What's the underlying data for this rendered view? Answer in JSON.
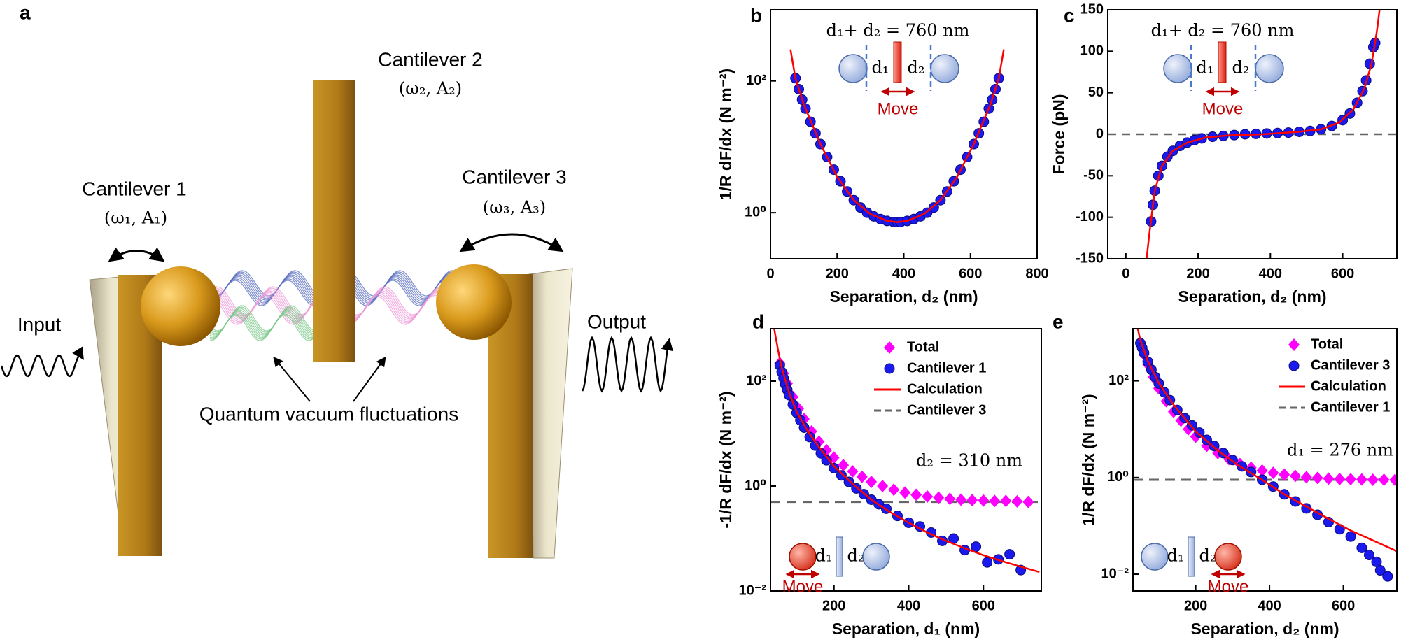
{
  "diagram": {
    "panel_label": "a",
    "cantilever_1": "Cantilever 1",
    "cantilever_1_params": "(ω₁, A₁)",
    "cantilever_2": "Cantilever 2",
    "cantilever_2_params": "(ω₂, A₂)",
    "cantilever_3": "Cantilever 3",
    "cantilever_3_params": "(ω₃, A₃)",
    "input": "Input",
    "output": "Output",
    "fluctuations": "Quantum vacuum fluctuations"
  },
  "chart_data": [
    {
      "type": "scatter",
      "panel_label": "b",
      "ylog": true,
      "xlim": [
        0,
        800
      ],
      "xticks": [
        0,
        200,
        400,
        600,
        800
      ],
      "ylim": [
        0.2,
        1200
      ],
      "yticks": [
        {
          "value": 1,
          "label": "10⁰"
        },
        {
          "value": 100,
          "label": "10²"
        }
      ],
      "xlabel": "Separation, d₂ (nm)",
      "ylabel": "1/R dF/dx (N m⁻²)",
      "annotations": [
        "d₁+ d₂ = 760 nm",
        "d₁",
        "d₂",
        "Move"
      ],
      "series": [
        {
          "kind": "scatter",
          "marker": "circle",
          "color": "#1a1aee",
          "x": [
            75,
            85,
            95,
            105,
            120,
            135,
            150,
            170,
            190,
            210,
            230,
            250,
            270,
            290,
            310,
            330,
            350,
            370,
            380,
            390,
            410,
            430,
            450,
            470,
            490,
            510,
            530,
            550,
            570,
            590,
            610,
            625,
            640,
            655,
            665,
            675,
            685
          ],
          "values": [
            110,
            75,
            52,
            38,
            24,
            16,
            11,
            7,
            4.5,
            3.0,
            2.1,
            1.55,
            1.2,
            1.0,
            0.88,
            0.8,
            0.75,
            0.72,
            0.72,
            0.72,
            0.75,
            0.8,
            0.88,
            1.0,
            1.2,
            1.55,
            2.1,
            3.0,
            4.5,
            7,
            11,
            16,
            24,
            38,
            52,
            75,
            110
          ]
        },
        {
          "kind": "line",
          "color": "#ff0000",
          "x": [
            60,
            75,
            100,
            150,
            200,
            250,
            300,
            350,
            380,
            410,
            460,
            510,
            560,
            610,
            660,
            685,
            700
          ],
          "values": [
            300,
            110,
            44,
            11,
            3.5,
            1.55,
            0.95,
            0.75,
            0.72,
            0.75,
            0.95,
            1.55,
            3.5,
            11,
            44,
            110,
            300
          ]
        }
      ]
    },
    {
      "type": "scatter",
      "panel_label": "c",
      "ylog": false,
      "xlim": [
        -50,
        750
      ],
      "xticks": [
        0,
        200,
        400,
        600
      ],
      "ylim": [
        -150,
        150
      ],
      "yticks": [
        -150,
        -100,
        -50,
        0,
        50,
        100,
        150
      ],
      "hline": 0,
      "xlabel": "Separation, d₂ (nm)",
      "ylabel": "Force (pN)",
      "annotations": [
        "d₁+ d₂ = 760 nm",
        "d₁",
        "d₂",
        "Move"
      ],
      "series": [
        {
          "kind": "scatter",
          "marker": "circle",
          "color": "#1a1aee",
          "x": [
            70,
            75,
            80,
            90,
            100,
            115,
            130,
            150,
            170,
            190,
            210,
            240,
            270,
            300,
            330,
            360,
            390,
            420,
            450,
            480,
            510,
            540,
            570,
            600,
            620,
            640,
            655,
            665,
            675,
            685,
            690
          ],
          "values": [
            -105,
            -85,
            -68,
            -50,
            -38,
            -27,
            -20,
            -14,
            -10,
            -7,
            -5,
            -3,
            -2,
            -1,
            0,
            0.5,
            1,
            1.5,
            2,
            3,
            4,
            6,
            10,
            17,
            25,
            38,
            52,
            65,
            85,
            105,
            110
          ]
        },
        {
          "kind": "line",
          "color": "#ff0000",
          "x": [
            55,
            65,
            80,
            100,
            130,
            170,
            220,
            280,
            380,
            480,
            540,
            590,
            630,
            660,
            680,
            695,
            705
          ],
          "values": [
            -160,
            -120,
            -68,
            -38,
            -20,
            -10,
            -4,
            -1.5,
            0,
            3,
            6,
            14,
            30,
            55,
            85,
            125,
            160
          ]
        }
      ]
    },
    {
      "type": "scatter",
      "panel_label": "d",
      "ylog": true,
      "xlim": [
        30,
        755
      ],
      "xticks": [
        200,
        400,
        600
      ],
      "ylim": [
        0.01,
        1000
      ],
      "yticks": [
        {
          "value": 0.01,
          "label": "10⁻²"
        },
        {
          "value": 1,
          "label": "10⁰"
        },
        {
          "value": 100,
          "label": "10²"
        }
      ],
      "xlabel": "Separation, d₁ (nm)",
      "ylabel": "-1/R dF/dx (N m⁻²)",
      "legend": "upper right",
      "annotations": [
        "d₂ = 310 nm",
        "d₁",
        "d₂",
        "Move"
      ],
      "series": [
        {
          "name": "Total",
          "kind": "scatter",
          "marker": "diamond",
          "color": "#ff00ff",
          "x": [
            55,
            65,
            75,
            90,
            105,
            120,
            140,
            160,
            180,
            200,
            225,
            250,
            275,
            300,
            330,
            360,
            390,
            420,
            450,
            480,
            510,
            540,
            570,
            600,
            630,
            660,
            690,
            720
          ],
          "values": [
            220,
            140,
            90,
            50,
            30,
            19,
            11,
            7,
            4.8,
            3.5,
            2.5,
            1.9,
            1.5,
            1.2,
            1.0,
            0.85,
            0.75,
            0.68,
            0.63,
            0.6,
            0.57,
            0.55,
            0.54,
            0.53,
            0.52,
            0.52,
            0.51,
            0.5
          ]
        },
        {
          "name": "Cantilever 1",
          "kind": "scatter",
          "marker": "circle",
          "color": "#1a1aee",
          "x": [
            55,
            60,
            65,
            70,
            75,
            80,
            90,
            100,
            110,
            120,
            135,
            150,
            165,
            180,
            200,
            220,
            240,
            260,
            280,
            300,
            320,
            340,
            370,
            400,
            430,
            460,
            490,
            520,
            550,
            580,
            610,
            640,
            670,
            700
          ],
          "values": [
            200,
            150,
            114,
            86,
            68,
            54,
            36,
            25,
            18,
            13,
            8.6,
            5.9,
            4.2,
            3.1,
            2.2,
            1.6,
            1.2,
            0.9,
            0.7,
            0.55,
            0.45,
            0.37,
            0.27,
            0.2,
            0.17,
            0.13,
            0.09,
            0.1,
            0.06,
            0.07,
            0.035,
            0.04,
            0.05,
            0.025
          ]
        },
        {
          "name": "Calculation",
          "kind": "line",
          "color": "#ff0000",
          "x": [
            40,
            50,
            60,
            80,
            100,
            130,
            160,
            200,
            250,
            300,
            350,
            400,
            450,
            500,
            550,
            600,
            650,
            700,
            750
          ],
          "values": [
            1000,
            400,
            180,
            60,
            26,
            11,
            5.5,
            2.4,
            1.1,
            0.55,
            0.32,
            0.2,
            0.13,
            0.09,
            0.065,
            0.048,
            0.037,
            0.029,
            0.023
          ]
        },
        {
          "name": "Cantilever 3",
          "kind": "dashed",
          "color": "#666666",
          "x": [
            30,
            755
          ],
          "values": [
            0.5,
            0.5
          ]
        }
      ]
    },
    {
      "type": "scatter",
      "panel_label": "e",
      "ylog": true,
      "xlim": [
        30,
        745
      ],
      "xticks": [
        200,
        400,
        600
      ],
      "ylim": [
        0.0045,
        1200
      ],
      "yticks": [
        {
          "value": 0.01,
          "label": "10⁻²"
        },
        {
          "value": 1,
          "label": "10⁰"
        },
        {
          "value": 100,
          "label": "10²"
        }
      ],
      "xlabel": "Separation, d₂ (nm)",
      "ylabel": "1/R dF/dx (N m⁻²)",
      "legend": "upper right",
      "annotations": [
        "d₁ = 276 nm",
        "d₁",
        "d₂",
        "Move"
      ],
      "series": [
        {
          "name": "Total",
          "kind": "scatter",
          "marker": "diamond",
          "color": "#ff00ff",
          "x": [
            50,
            60,
            70,
            85,
            100,
            120,
            140,
            160,
            180,
            200,
            230,
            260,
            290,
            320,
            350,
            380,
            410,
            440,
            470,
            500,
            530,
            560,
            590,
            620,
            650,
            680,
            710,
            740
          ],
          "values": [
            600,
            350,
            220,
            120,
            70,
            38,
            23,
            15,
            10,
            7,
            4.5,
            3.2,
            2.4,
            1.9,
            1.6,
            1.4,
            1.25,
            1.15,
            1.08,
            1.02,
            0.98,
            0.95,
            0.93,
            0.92,
            0.91,
            0.9,
            0.9,
            0.89
          ]
        },
        {
          "name": "Cantilever 3",
          "kind": "scatter",
          "marker": "circle",
          "color": "#1a1aee",
          "x": [
            50,
            55,
            60,
            70,
            80,
            90,
            100,
            115,
            130,
            150,
            170,
            190,
            210,
            230,
            250,
            275,
            300,
            325,
            350,
            380,
            410,
            440,
            470,
            500,
            530,
            560,
            590,
            620,
            650,
            670,
            690,
            700,
            720
          ],
          "values": [
            600,
            480,
            380,
            250,
            170,
            120,
            88,
            58,
            40,
            25,
            17,
            12,
            8.5,
            6,
            4.5,
            3.2,
            2.3,
            1.7,
            1.3,
            0.9,
            0.65,
            0.45,
            0.32,
            0.23,
            0.17,
            0.12,
            0.085,
            0.06,
            0.035,
            0.025,
            0.018,
            0.012,
            0.009
          ]
        },
        {
          "name": "Calculation",
          "kind": "line",
          "color": "#ff0000",
          "x": [
            40,
            50,
            70,
            100,
            140,
            200,
            260,
            320,
            380,
            440,
            500,
            560,
            620,
            680,
            745
          ],
          "values": [
            1500,
            700,
            260,
            90,
            32,
            9,
            3.6,
            1.7,
            0.9,
            0.45,
            0.25,
            0.14,
            0.08,
            0.05,
            0.03
          ]
        },
        {
          "name": "Cantilever 1",
          "kind": "dashed",
          "color": "#666666",
          "x": [
            30,
            745
          ],
          "values": [
            0.9,
            0.9
          ]
        }
      ]
    }
  ]
}
